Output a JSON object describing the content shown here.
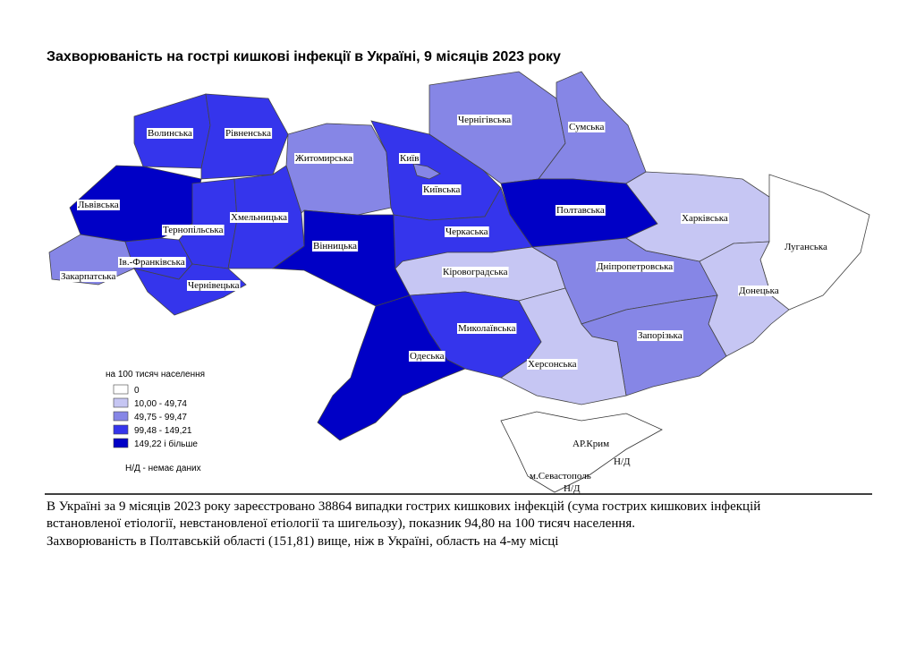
{
  "title": "Захворюваність на гострі кишкові інфекції в Україні, 9 місяців 2023 року",
  "legend": {
    "title": "на 100 тисяч населення",
    "items": [
      {
        "label": "0",
        "color": "#ffffff"
      },
      {
        "label": "10,00 - 49,74",
        "color": "#c6c6f3"
      },
      {
        "label": "49,75 - 99,47",
        "color": "#8686e6"
      },
      {
        "label": "99,48 - 149,21",
        "color": "#3535ec"
      },
      {
        "label": "149,22 і більше",
        "color": "#0000c6"
      }
    ],
    "no_data_note": "Н/Д - немає даних"
  },
  "regions": [
    {
      "label": "Волинська",
      "class": 3
    },
    {
      "label": "Рівненська",
      "class": 3
    },
    {
      "label": "Львівська",
      "class": 4
    },
    {
      "label": "Тернопільська",
      "class": 3
    },
    {
      "label": "Хмельницька",
      "class": 3
    },
    {
      "label": "Закарпатська",
      "class": 2
    },
    {
      "label": "Ів.-Франківська",
      "class": 3
    },
    {
      "label": "Чернівецька",
      "class": 3
    },
    {
      "label": "Житомирська",
      "class": 2
    },
    {
      "label": "Вінницька",
      "class": 4
    },
    {
      "label": "Київська",
      "class": 3
    },
    {
      "label": "Київ",
      "class": 2
    },
    {
      "label": "Чернігівська",
      "class": 2
    },
    {
      "label": "Сумська",
      "class": 2
    },
    {
      "label": "Полтавська",
      "class": 4
    },
    {
      "label": "Черкаська",
      "class": 3
    },
    {
      "label": "Кіровоградська",
      "class": 1
    },
    {
      "label": "Дніпропетровська",
      "class": 2
    },
    {
      "label": "Харківська",
      "class": 1
    },
    {
      "label": "Луганська",
      "class": 0
    },
    {
      "label": "Донецька",
      "class": 1
    },
    {
      "label": "Запорізька",
      "class": 2
    },
    {
      "label": "Херсонська",
      "class": 1
    },
    {
      "label": "Миколаївська",
      "class": 3
    },
    {
      "label": "Одеська",
      "class": 4
    }
  ],
  "crimea": {
    "label": "АР.Крим",
    "no_data": "Н/Д"
  },
  "sevastopol": {
    "label": "м.Севастополь",
    "no_data": "Н/Д"
  },
  "notes": [
    "В Україні за 9 місяців 2023 року зареєстровано 38864 випадки гострих кишкових інфекцій (сума гострих кишкових інфекцій",
    "встановленої етіології, невстановленої етіології та шигельозу), показник 94,80 на 100 тисяч населення.",
    "Захворюваність в Полтавській області (151,81) вище, ніж в Україні, область на 4-му місці"
  ]
}
